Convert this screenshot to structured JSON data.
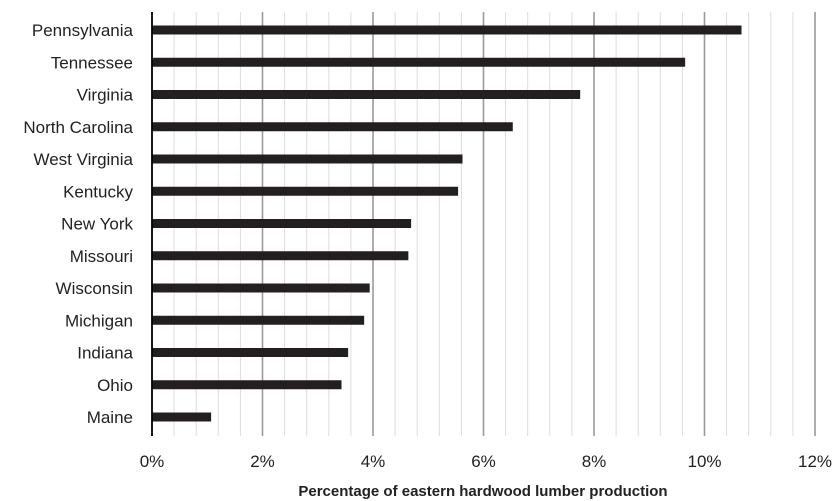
{
  "chart_data": {
    "type": "bar",
    "orientation": "horizontal",
    "categories": [
      "Pennsylvania",
      "Tennessee",
      "Virginia",
      "North Carolina",
      "West Virginia",
      "Kentucky",
      "New York",
      "Missouri",
      "Wisconsin",
      "Michigan",
      "Indiana",
      "Ohio",
      "Maine"
    ],
    "values": [
      10.67,
      9.65,
      7.75,
      6.53,
      5.62,
      5.54,
      4.69,
      4.64,
      3.94,
      3.84,
      3.55,
      3.43,
      1.07
    ],
    "xlim": [
      0,
      12
    ],
    "x_ticks": [
      0,
      2,
      4,
      6,
      8,
      10,
      12
    ],
    "x_tick_labels": [
      "0%",
      "2%",
      "4%",
      "6%",
      "8%",
      "10%",
      "12%"
    ],
    "minor_x_step": 0.4,
    "xlabel": "Percentage of eastern hardwood lumber production",
    "ylabel": "",
    "title": "",
    "grid": "vertical",
    "legend": "none",
    "colors": {
      "bar": "#231f20",
      "major_grid": "#9a9a9a",
      "minor_grid": "#dddddd",
      "axis": "#000000"
    }
  }
}
